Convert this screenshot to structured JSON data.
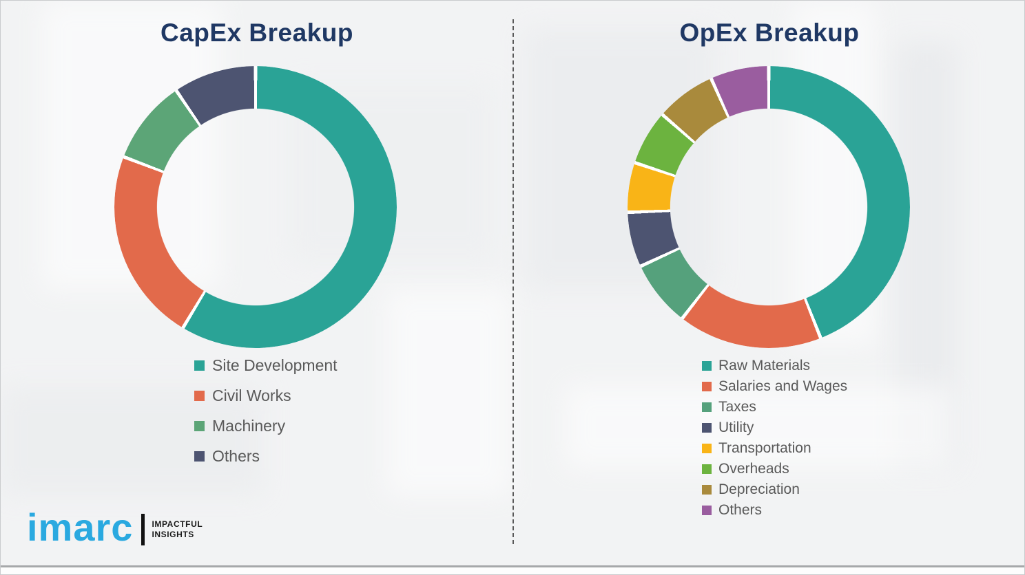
{
  "titles": {
    "capex": "CapEx Breakup",
    "opex": "OpEx Breakup"
  },
  "colors": {
    "title": "#1f3864",
    "legend_text": "#595959",
    "divider": "#595959",
    "logo_blue": "#2aa9e0",
    "gap_white": "#ffffff"
  },
  "chart_data": [
    {
      "type": "pie",
      "variant": "donut",
      "title": "CapEx Breakup",
      "categories": [
        "Site Development",
        "Civil Works",
        "Machinery",
        "Others"
      ],
      "values": [
        58.6,
        22.2,
        9.7,
        9.5
      ],
      "colors": [
        "#2aa396",
        "#e26a4b",
        "#5ca577",
        "#4d5471"
      ],
      "legend_position": "bottom-left",
      "start_angle_deg": 0,
      "direction": "clockwise"
    },
    {
      "type": "pie",
      "variant": "donut",
      "title": "OpEx Breakup",
      "categories": [
        "Raw Materials",
        "Salaries and Wages",
        "Taxes",
        "Utility",
        "Transportation",
        "Overheads",
        "Depreciation",
        "Others"
      ],
      "values": [
        44.0,
        16.5,
        7.6,
        6.3,
        5.7,
        6.3,
        6.9,
        6.7
      ],
      "colors": [
        "#2aa396",
        "#e26a4b",
        "#55a17c",
        "#4d5471",
        "#f9b417",
        "#6cb33f",
        "#a98a3c",
        "#9a5d9f"
      ],
      "legend_position": "bottom-left",
      "start_angle_deg": 0,
      "direction": "clockwise"
    }
  ],
  "logo": {
    "wordmark": "imarc",
    "tagline_line1": "IMPACTFUL",
    "tagline_line2": "INSIGHTS"
  }
}
